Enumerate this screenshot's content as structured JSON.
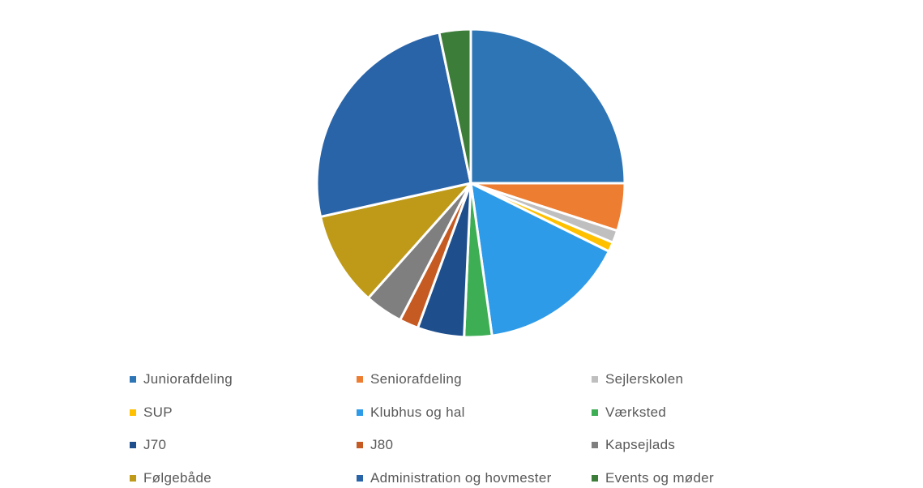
{
  "chart_data": {
    "type": "pie",
    "title": "",
    "legend_position": "bottom",
    "slices": [
      {
        "label": "Juniorafdeling",
        "value": 25.0,
        "color": "#2E75B6"
      },
      {
        "label": "Seniorafdeling",
        "value": 5.0,
        "color": "#ED7D31"
      },
      {
        "label": "Sejlerskolen",
        "value": 1.3,
        "color": "#BFBFBF"
      },
      {
        "label": "SUP",
        "value": 1.0,
        "color": "#FFC000"
      },
      {
        "label": "Klubhus og hal",
        "value": 15.5,
        "color": "#2E9BE8"
      },
      {
        "label": "Værksted",
        "value": 2.9,
        "color": "#3DAE54"
      },
      {
        "label": "J70",
        "value": 4.9,
        "color": "#1F4E8C"
      },
      {
        "label": "J80",
        "value": 2.0,
        "color": "#C55A23"
      },
      {
        "label": "Kapsejlads",
        "value": 4.0,
        "color": "#7F7F7F"
      },
      {
        "label": "Følgebåde",
        "value": 9.9,
        "color": "#BF9A18"
      },
      {
        "label": "Administration og hovmester",
        "value": 25.2,
        "color": "#2A64A8"
      },
      {
        "label": "Events og møder",
        "value": 3.3,
        "color": "#3C7D3A"
      }
    ]
  }
}
